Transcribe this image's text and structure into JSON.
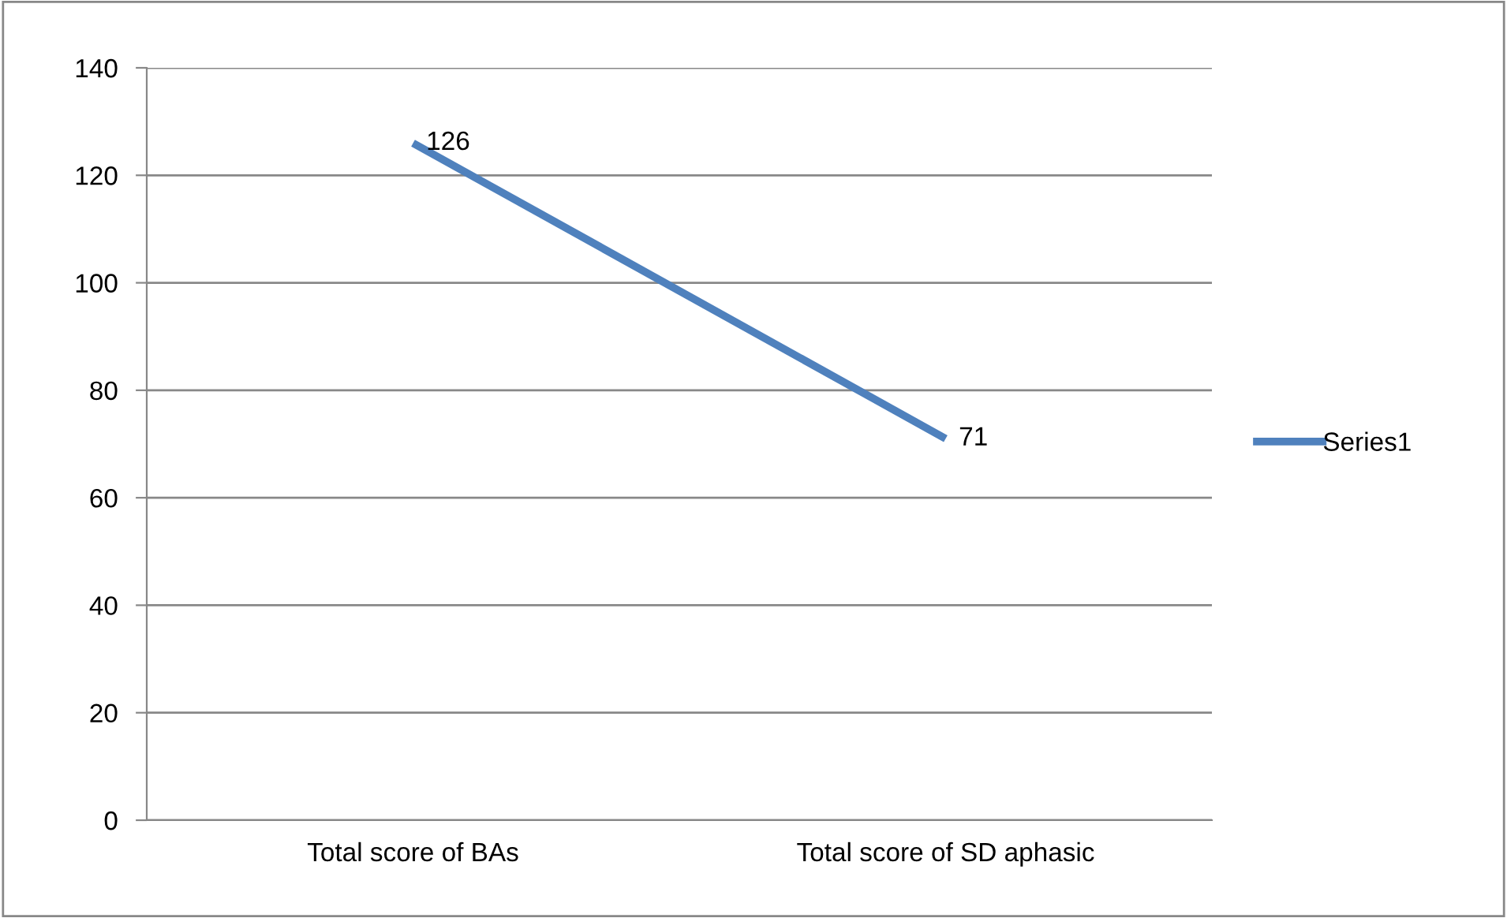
{
  "chart_data": {
    "type": "line",
    "categories": [
      "Total score of BAs",
      "Total score of SD aphasic"
    ],
    "series": [
      {
        "name": "Series1",
        "color": "#4f81bd",
        "values": [
          126,
          71
        ]
      }
    ],
    "ylim": [
      0,
      140
    ],
    "yticks": [
      0,
      20,
      40,
      60,
      80,
      100,
      120,
      140
    ],
    "grid": "y",
    "legend": "right",
    "data_labels": true,
    "marker": "none",
    "line_style": "solid"
  }
}
